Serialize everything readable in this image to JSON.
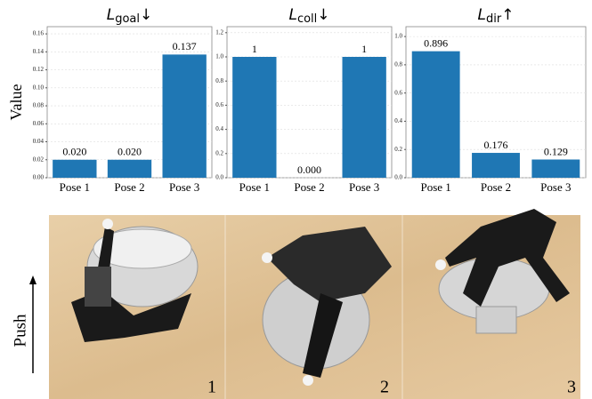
{
  "chart_data": [
    {
      "type": "bar",
      "title": {
        "main": "L",
        "sub": "goal",
        "suffix": "↓"
      },
      "ylabel": "Value",
      "categories": [
        "Pose 1",
        "Pose 2",
        "Pose 3"
      ],
      "values": [
        0.02,
        0.02,
        0.137
      ],
      "value_labels": [
        "0.020",
        "0.020",
        "0.137"
      ],
      "color": "#1f77b4",
      "ylim": [
        0,
        0.168
      ],
      "yticks": [
        {
          "value": 0,
          "label": "0.00"
        },
        0.02,
        0.04,
        0.06,
        0.08,
        {
          "value": 0.1,
          "label": "0.10"
        },
        0.12,
        0.14,
        0.16
      ],
      "grid": true
    },
    {
      "type": "bar",
      "title": {
        "main": "L",
        "sub": "coll",
        "suffix": "↓"
      },
      "categories": [
        "Pose 1",
        "Pose 2",
        "Pose 3"
      ],
      "values": [
        1,
        0,
        1
      ],
      "value_labels": [
        "1",
        "0.000",
        "1"
      ],
      "color": "#1f77b4",
      "ylim": [
        0,
        1.25
      ],
      "yticks": [
        {
          "value": 0,
          "label": "0.0"
        },
        0.2,
        0.4,
        0.6,
        0.8,
        {
          "value": 1,
          "label": "1.0"
        },
        1.2
      ],
      "grid": true
    },
    {
      "type": "bar",
      "title": {
        "main": "L",
        "sub": "dir",
        "suffix": "↑"
      },
      "categories": [
        "Pose 1",
        "Pose 2",
        "Pose 3"
      ],
      "values": [
        0.896,
        0.176,
        0.129
      ],
      "value_labels": [
        "0.896",
        "0.176",
        "0.129"
      ],
      "color": "#1f77b4",
      "ylim": [
        0,
        1.07
      ],
      "yticks": [
        {
          "value": 0,
          "label": "0.0"
        },
        0.2,
        0.4,
        0.6,
        0.8,
        {
          "value": 1,
          "label": "1.0"
        }
      ],
      "grid": true
    }
  ],
  "images": {
    "arrow_label": "Push",
    "panel_labels": [
      "1",
      "2",
      "3"
    ]
  }
}
